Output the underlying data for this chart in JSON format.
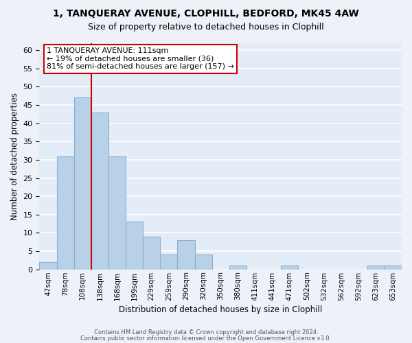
{
  "title": "1, TANQUERAY AVENUE, CLOPHILL, BEDFORD, MK45 4AW",
  "subtitle": "Size of property relative to detached houses in Clophill",
  "xlabel": "Distribution of detached houses by size in Clophill",
  "ylabel": "Number of detached properties",
  "bar_labels": [
    "47sqm",
    "78sqm",
    "108sqm",
    "138sqm",
    "168sqm",
    "199sqm",
    "229sqm",
    "259sqm",
    "290sqm",
    "320sqm",
    "350sqm",
    "380sqm",
    "411sqm",
    "441sqm",
    "471sqm",
    "502sqm",
    "532sqm",
    "562sqm",
    "592sqm",
    "623sqm",
    "653sqm"
  ],
  "bar_values": [
    2,
    31,
    47,
    43,
    31,
    13,
    9,
    4,
    8,
    4,
    0,
    1,
    0,
    0,
    1,
    0,
    0,
    0,
    0,
    1,
    1
  ],
  "ylim": [
    0,
    62
  ],
  "yticks": [
    0,
    5,
    10,
    15,
    20,
    25,
    30,
    35,
    40,
    45,
    50,
    55,
    60
  ],
  "bar_color": "#b8d0e8",
  "bar_edge_color": "#8ab0d0",
  "vline_x": 2.5,
  "vline_color": "#cc0000",
  "annotation_title": "1 TANQUERAY AVENUE: 111sqm",
  "annotation_line1": "← 19% of detached houses are smaller (36)",
  "annotation_line2": "81% of semi-detached houses are larger (157) →",
  "annotation_box_color": "#ffffff",
  "annotation_box_edge": "#cc0000",
  "footer1": "Contains HM Land Registry data © Crown copyright and database right 2024.",
  "footer2": "Contains public sector information licensed under the Open Government Licence v3.0.",
  "background_color": "#eef2f8",
  "plot_background_color": "#e4ecf7"
}
